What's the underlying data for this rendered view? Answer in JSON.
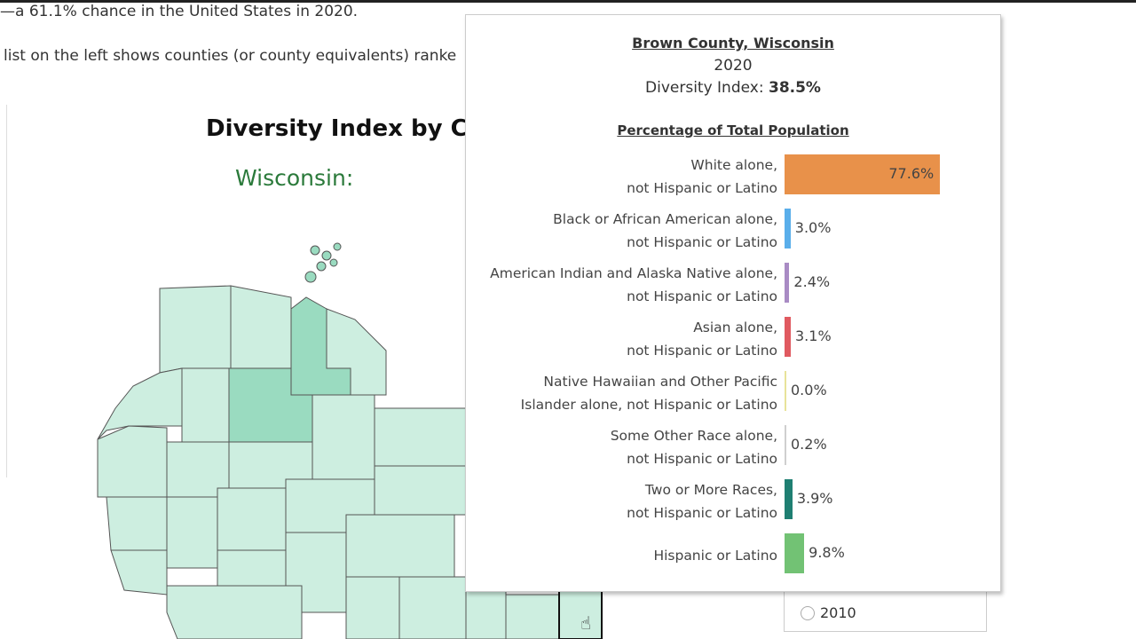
{
  "article": {
    "line1": "—a 61.1% chance in the United States in 2020.",
    "line2": "list on the left shows counties (or county equivalents) ranke"
  },
  "map": {
    "title": "Diversity Index by Cou",
    "state": "Wisconsin:",
    "base_color": "#cdeee0",
    "highlight_color": "#9adbc0"
  },
  "year_filter": {
    "options": [
      {
        "label": "2010",
        "selected": false
      }
    ]
  },
  "tooltip": {
    "county": "Brown County, Wisconsin",
    "year": "2020",
    "index_label": "Diversity Index: ",
    "index_value": "38.5%",
    "section_title": "Percentage of Total Population",
    "rows": [
      {
        "line1": "White alone,",
        "line2": "not Hispanic or Latino",
        "value": 77.6,
        "label": "77.6%",
        "color": "#e8914a"
      },
      {
        "line1": "Black or African American alone,",
        "line2": "not Hispanic or Latino",
        "value": 3.0,
        "label": "3.0%",
        "color": "#5aaeea"
      },
      {
        "line1": "American Indian and Alaska Native alone,",
        "line2": "not Hispanic or Latino",
        "value": 2.4,
        "label": "2.4%",
        "color": "#a98bc4"
      },
      {
        "line1": "Asian alone,",
        "line2": "not Hispanic or Latino",
        "value": 3.1,
        "label": "3.1%",
        "color": "#e05a60"
      },
      {
        "line1": "Native Hawaiian and Other Pacific",
        "line2": "Islander alone, not Hispanic or Latino",
        "value": 0.0,
        "label": "0.0%",
        "color": "#e8e39a"
      },
      {
        "line1": "Some Other Race alone,",
        "line2": "not Hispanic or Latino",
        "value": 0.2,
        "label": "0.2%",
        "color": "#cfcfcf"
      },
      {
        "line1": "Two or More Races,",
        "line2": "not Hispanic or Latino",
        "value": 3.9,
        "label": "3.9%",
        "color": "#1f7f72"
      },
      {
        "line1": "Hispanic or Latino",
        "line2": "",
        "value": 9.8,
        "label": "9.8%",
        "color": "#72c274"
      }
    ]
  }
}
